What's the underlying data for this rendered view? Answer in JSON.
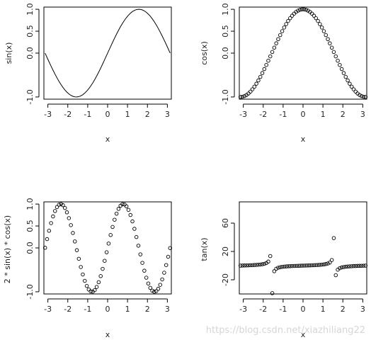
{
  "watermark": "https://blog.csdn.net/xiazhiliang22",
  "chart_data": [
    {
      "type": "line",
      "func": "sin",
      "xlabel": "x",
      "ylabel": "sin(x)",
      "xlim": [
        -3.2,
        3.2
      ],
      "ylim": [
        -1.05,
        1.05
      ],
      "xticks": [
        -3,
        -2,
        -1,
        0,
        1,
        2,
        3
      ],
      "yticks": [
        -1.0,
        0.0,
        0.5,
        1.0
      ],
      "ytick_labels": [
        "-1.0",
        "0.0",
        "0.5",
        "1.0"
      ],
      "x_range": [
        -3.14,
        3.14
      ],
      "n_points": 64,
      "color": "#000000"
    },
    {
      "type": "scatter",
      "func": "cos",
      "xlabel": "x",
      "ylabel": "cos(x)",
      "xlim": [
        -3.2,
        3.2
      ],
      "ylim": [
        -1.05,
        1.05
      ],
      "xticks": [
        -3,
        -2,
        -1,
        0,
        1,
        2,
        3
      ],
      "yticks": [
        -1.0,
        0.0,
        0.5,
        1.0
      ],
      "ytick_labels": [
        "-1.0",
        "0.0",
        "0.5",
        "1.0"
      ],
      "x_range": [
        -3.14,
        3.14
      ],
      "n_points": 64,
      "marker": "open-circle",
      "color": "#000000"
    },
    {
      "type": "scatter",
      "func": "2sincos",
      "xlabel": "x",
      "ylabel": "2 * sin(x) * cos(x)",
      "xlim": [
        -3.2,
        3.2
      ],
      "ylim": [
        -1.05,
        1.05
      ],
      "xticks": [
        -3,
        -2,
        -1,
        0,
        1,
        2,
        3
      ],
      "yticks": [
        -1.0,
        0.0,
        0.5,
        1.0
      ],
      "ytick_labels": [
        "-1.0",
        "0.0",
        "0.5",
        "1.0"
      ],
      "x_range": [
        -3.14,
        3.14
      ],
      "n_points": 64,
      "marker": "open-circle",
      "color": "#000000"
    },
    {
      "type": "scatter",
      "func": "tan",
      "xlabel": "x",
      "ylabel": "tan(x)",
      "xlim": [
        -3.2,
        3.2
      ],
      "ylim": [
        -40,
        90
      ],
      "xticks": [
        -3,
        -2,
        -1,
        0,
        1,
        2,
        3
      ],
      "yticks": [
        -20,
        20,
        60
      ],
      "ytick_labels": [
        "-20",
        "20",
        "60"
      ],
      "x_range": [
        -3.14,
        3.14
      ],
      "n_points": 64,
      "marker": "open-circle",
      "color": "#000000"
    }
  ]
}
